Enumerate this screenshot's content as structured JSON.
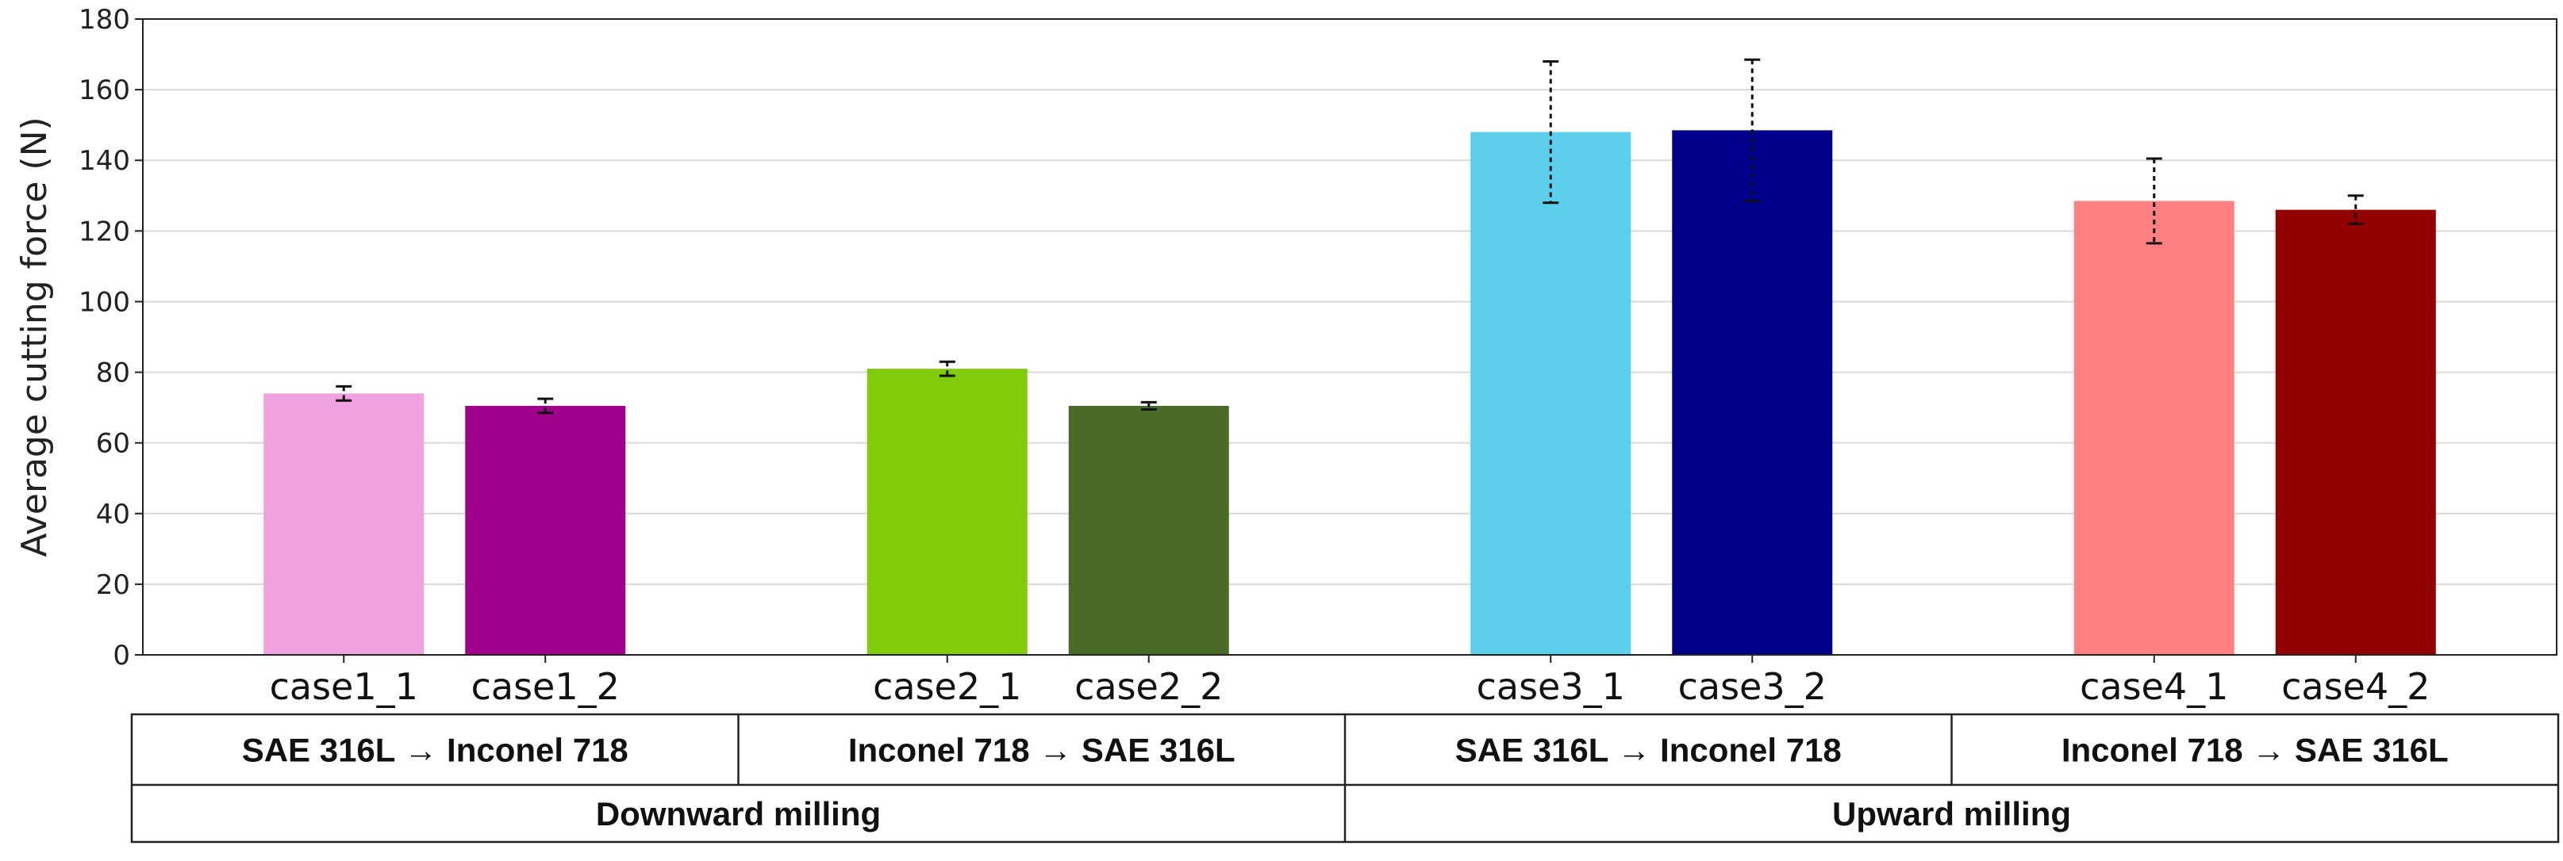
{
  "chart_data": {
    "type": "bar",
    "title": "",
    "xlabel": "",
    "ylabel": "Average cutting force (N)",
    "ylim": [
      0,
      180
    ],
    "yticks": [
      0,
      20,
      40,
      60,
      80,
      100,
      120,
      140,
      160,
      180
    ],
    "grid": true,
    "categories": [
      "case1_1",
      "case1_2",
      "case2_1",
      "case2_2",
      "case3_1",
      "case3_2",
      "case4_1",
      "case4_2"
    ],
    "values": [
      74,
      70.5,
      81,
      70.5,
      148,
      148.5,
      128.5,
      126
    ],
    "errors": [
      2,
      2,
      2,
      1,
      20,
      20,
      12,
      4
    ],
    "colors": [
      "#f0a1df",
      "#a0018b",
      "#80cc0a",
      "#4a6b27",
      "#5bcfec",
      "#00008b",
      "#ff8080",
      "#930000"
    ],
    "groups": [
      {
        "label": "SAE 316L → Inconel 718",
        "cases": [
          "case1_1",
          "case1_2"
        ]
      },
      {
        "label": "Inconel 718 → SAE 316L",
        "cases": [
          "case2_1",
          "case2_2"
        ]
      },
      {
        "label": "SAE 316L → Inconel 718",
        "cases": [
          "case3_1",
          "case3_2"
        ]
      },
      {
        "label": "Inconel 718 → SAE 316L",
        "cases": [
          "case4_1",
          "case4_2"
        ]
      }
    ],
    "supergroups": [
      {
        "label": "Downward milling",
        "groups": [
          0,
          1
        ]
      },
      {
        "label": "Upward milling",
        "groups": [
          2,
          3
        ]
      }
    ]
  }
}
